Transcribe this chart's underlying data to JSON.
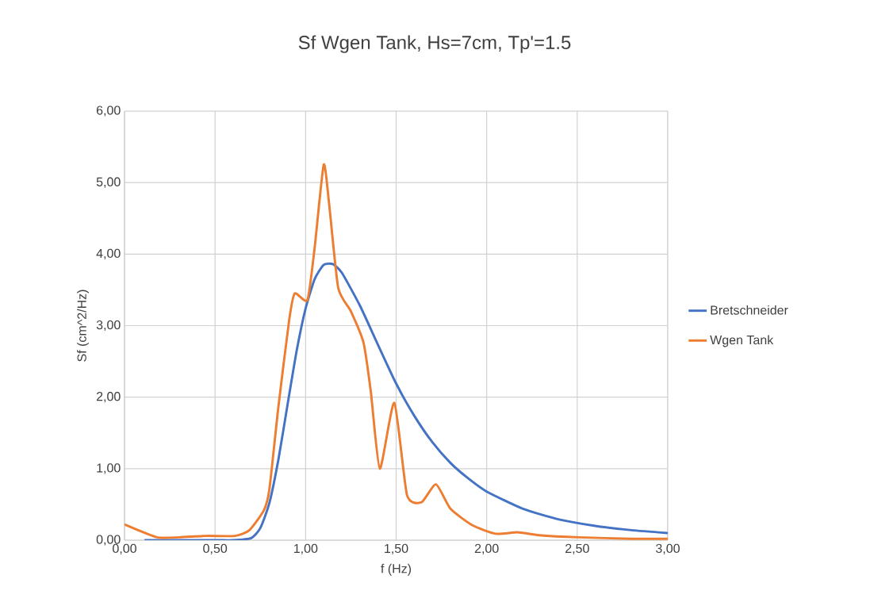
{
  "chart_data": {
    "type": "line",
    "title": "Sf Wgen Tank, Hs=7cm, Tp'=1.5",
    "xlabel": "f (Hz)",
    "ylabel": "Sf (cm^2/Hz)",
    "xlim": [
      0,
      3
    ],
    "ylim": [
      0,
      6
    ],
    "xticks": [
      {
        "value": 0,
        "label": "0,00"
      },
      {
        "value": 0.5,
        "label": "0,50"
      },
      {
        "value": 1,
        "label": "1,00"
      },
      {
        "value": 1.5,
        "label": "1,50"
      },
      {
        "value": 2,
        "label": "2,00"
      },
      {
        "value": 2.5,
        "label": "2,50"
      },
      {
        "value": 3,
        "label": "3,00"
      }
    ],
    "yticks": [
      {
        "value": 0,
        "label": "0,00"
      },
      {
        "value": 1,
        "label": "1,00"
      },
      {
        "value": 2,
        "label": "2,00"
      },
      {
        "value": 3,
        "label": "3,00"
      },
      {
        "value": 4,
        "label": "4,00"
      },
      {
        "value": 5,
        "label": "5,00"
      },
      {
        "value": 6,
        "label": "6,00"
      }
    ],
    "grid": true,
    "legend": "right",
    "marker": "none",
    "line_style": "solid",
    "series": [
      {
        "name": "Bretschneider",
        "color": "#4472c4",
        "x": [
          0.11,
          0.5,
          0.6,
          0.7,
          0.75,
          0.8,
          0.85,
          0.9,
          0.95,
          1.0,
          1.05,
          1.1,
          1.15,
          1.2,
          1.3,
          1.4,
          1.5,
          1.6,
          1.7,
          1.8,
          1.9,
          2.0,
          2.2,
          2.4,
          2.6,
          2.8,
          3.0
        ],
        "values": [
          0,
          0,
          0,
          0.03,
          0.17,
          0.52,
          1.13,
          1.89,
          2.64,
          3.24,
          3.65,
          3.85,
          3.86,
          3.74,
          3.28,
          2.73,
          2.19,
          1.74,
          1.37,
          1.08,
          0.86,
          0.68,
          0.44,
          0.29,
          0.2,
          0.14,
          0.1
        ]
      },
      {
        "name": "Wgen Tank",
        "color": "#ed7d31",
        "x": [
          0,
          0.18,
          0.3,
          0.45,
          0.61,
          0.69,
          0.77,
          0.8,
          0.85,
          0.91,
          0.94,
          1.01,
          1.05,
          1.1,
          1.13,
          1.18,
          1.25,
          1.32,
          1.36,
          1.41,
          1.49,
          1.56,
          1.64,
          1.72,
          1.8,
          1.92,
          2.05,
          2.17,
          2.29,
          2.51,
          2.8,
          3.0
        ],
        "values": [
          0.22,
          0.04,
          0.04,
          0.06,
          0.06,
          0.14,
          0.42,
          0.71,
          1.87,
          3.09,
          3.45,
          3.36,
          4.09,
          5.25,
          4.7,
          3.53,
          3.2,
          2.76,
          2.08,
          1.0,
          1.92,
          0.63,
          0.53,
          0.78,
          0.44,
          0.21,
          0.09,
          0.11,
          0.07,
          0.04,
          0.02,
          0.02
        ]
      }
    ]
  }
}
